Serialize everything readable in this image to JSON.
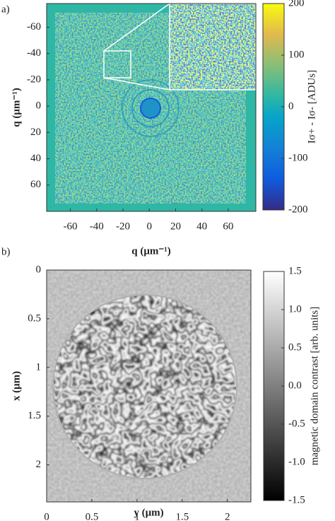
{
  "chart_data": [
    {
      "type": "heatmap",
      "panel_label": "a)",
      "xlabel": "q (μm⁻¹)",
      "ylabel": "q (μm⁻¹)",
      "xlim": [
        -78,
        81
      ],
      "ylim": [
        -78,
        80
      ],
      "yreverse": true,
      "xticks": [
        -60,
        -40,
        -20,
        0,
        20,
        40,
        60
      ],
      "yticks": [
        -60,
        -40,
        -20,
        0,
        20,
        40,
        60
      ],
      "colormap": "parula",
      "colorbar": {
        "label": "Iσ+ - Iσ- [ADUs]",
        "clim": [
          -200,
          200
        ],
        "ticks": [
          -200,
          -100,
          0,
          100,
          200
        ]
      }
    },
    {
      "type": "heatmap",
      "panel_label": "b)",
      "xlabel": "y (μm)",
      "ylabel": "x (μm)",
      "xlim": [
        0,
        2.26
      ],
      "ylim": [
        0,
        2.38
      ],
      "yreverse": true,
      "xticks": [
        0,
        0.5,
        1,
        1.5,
        2
      ],
      "yticks": [
        0,
        0.5,
        1,
        1.5,
        2
      ],
      "colormap": "gray",
      "colorbar": {
        "label": "magnetic domain contrast [arb. units]",
        "clim": [
          -1.5,
          1.5
        ],
        "ticks": [
          -1.5,
          {
            "value": -1,
            "label": "-1.0"
          },
          -0.5,
          {
            "value": 0,
            "label": "0.0"
          },
          0.5,
          {
            "value": 1,
            "label": "1.0"
          },
          1.5
        ]
      }
    }
  ]
}
